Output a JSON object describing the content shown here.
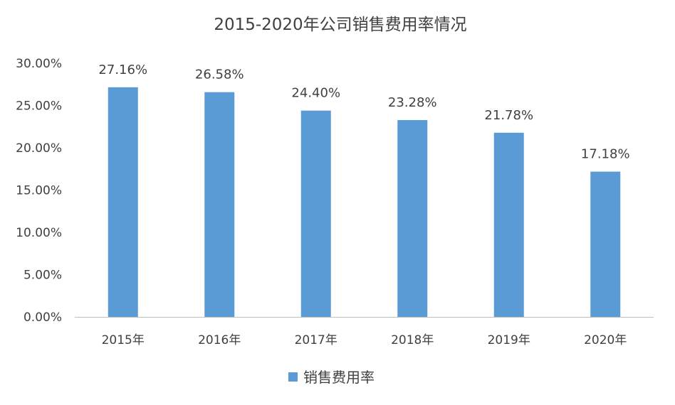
{
  "chart_data": {
    "type": "bar",
    "title": "2015-2020年公司销售费用率情况",
    "categories": [
      "2015年",
      "2016年",
      "2017年",
      "2018年",
      "2019年",
      "2020年"
    ],
    "series": [
      {
        "name": "销售费用率",
        "values": [
          27.16,
          26.58,
          24.4,
          23.28,
          21.78,
          17.18
        ],
        "data_labels": [
          "27.16%",
          "26.58%",
          "24.40%",
          "23.28%",
          "21.78%",
          "17.18%"
        ]
      }
    ],
    "ylim": [
      0,
      30
    ],
    "yticks": [
      0,
      5,
      10,
      15,
      20,
      25,
      30
    ],
    "ytick_labels": [
      "0.00%",
      "5.00%",
      "10.00%",
      "15.00%",
      "20.00%",
      "25.00%",
      "30.00%"
    ],
    "xlabel": "",
    "ylabel": "",
    "grid": false,
    "legend_position": "bottom",
    "colors": {
      "bar": "#5b9bd5",
      "axis": "#bfbfbf",
      "text": "#404040"
    }
  }
}
